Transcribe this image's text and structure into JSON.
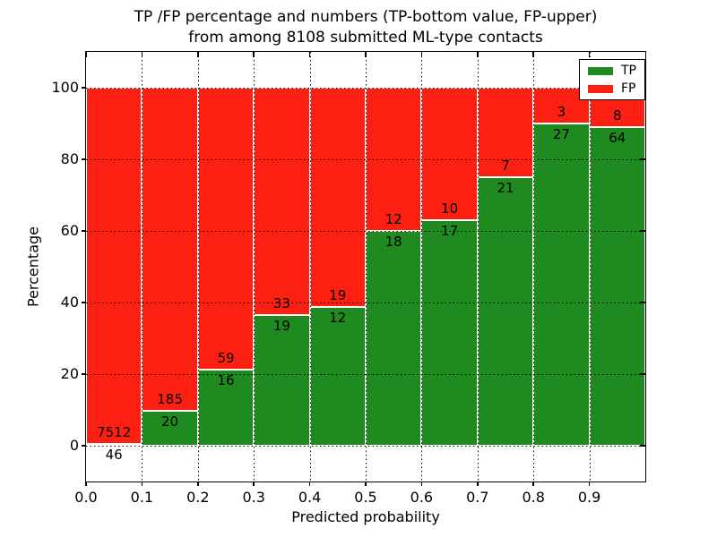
{
  "title": {
    "line1": "TP /FP percentage and numbers (TP-bottom value, FP-upper)",
    "line2": "from among 8108 submitted ML-type contacts"
  },
  "chart_data": {
    "type": "bar",
    "stacked": true,
    "normalization": "each bin scaled to 100%",
    "title": "TP /FP percentage and numbers (TP-bottom value, FP-upper)\nfrom among 8108 submitted ML-type contacts",
    "xlabel": "Predicted probability",
    "ylabel": "Percentage",
    "total_contacts": 8108,
    "bin_width": 0.1,
    "bin_starts": [
      0.0,
      0.1,
      0.2,
      0.3,
      0.4,
      0.5,
      0.6,
      0.7,
      0.8,
      0.9
    ],
    "series": [
      {
        "name": "TP",
        "color": "#1f8a1f",
        "counts": [
          46,
          20,
          16,
          19,
          12,
          18,
          17,
          21,
          27,
          64
        ]
      },
      {
        "name": "FP",
        "color": "#fc2012",
        "counts": [
          7512,
          185,
          59,
          33,
          19,
          12,
          10,
          7,
          3,
          8
        ]
      }
    ],
    "tp_percent_by_bin": [
      0.61,
      9.76,
      21.33,
      36.54,
      38.71,
      60.0,
      62.96,
      75.0,
      90.0,
      88.89
    ],
    "xlim": [
      0.0,
      1.0
    ],
    "ylim": [
      -10,
      110
    ],
    "xticks": [
      "0.0",
      "0.1",
      "0.2",
      "0.3",
      "0.4",
      "0.5",
      "0.6",
      "0.7",
      "0.8",
      "0.9"
    ],
    "yticks": [
      "0",
      "20",
      "40",
      "60",
      "80",
      "100"
    ],
    "grid": "dotted, drawn above bars",
    "legend": {
      "position": "upper right",
      "entries": [
        "TP",
        "FP"
      ]
    }
  }
}
